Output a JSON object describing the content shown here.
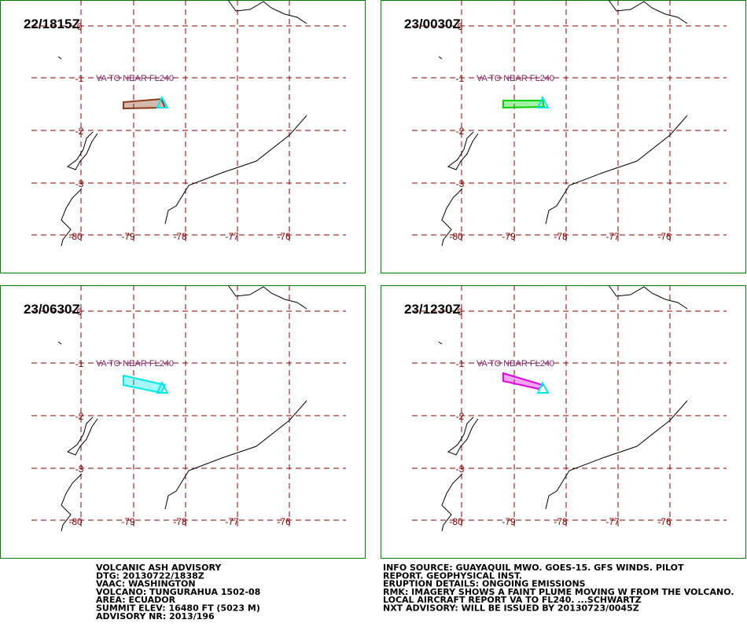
{
  "panels": [
    {
      "time": "22/1815Z",
      "annotation": "VA TO NEAR FL240",
      "color": "#8b3a1a"
    },
    {
      "time": "23/0030Z",
      "annotation": "VA TO NEAR FL240",
      "color": "#00d000"
    },
    {
      "time": "23/0630Z",
      "annotation": "VA TO NEAR FL240",
      "color": "#00e8e8"
    },
    {
      "time": "23/1230Z",
      "annotation": "VA TO NEAR FL240",
      "color": "#e000e0"
    }
  ],
  "lat_labels": [
    "0",
    "-1",
    "-2",
    "-3"
  ],
  "lon_labels": [
    "-80",
    "-79",
    "-78",
    "-77",
    "-76"
  ],
  "advisory_left": [
    "VOLCANIC ASH ADVISORY",
    "DTG: 20130722/1838Z",
    "VAAC: WASHINGTON",
    "VOLCANO: TUNGURAHUA 1502-08",
    "AREA: ECUADOR",
    "SUMMIT ELEV: 16480 FT (5023 M)",
    "ADVISORY NR: 2013/196"
  ],
  "advisory_right": [
    "INFO SOURCE: GUAYAQUIL MWO. GOES-15. GFS WINDS. PILOT",
    "REPORT. GEOPHYSICAL INST.",
    "ERUPTION DETAILS: ONGOING EMISSIONS",
    "RMK: IMAGERY SHOWS A FAINT PLUME MOVING W FROM THE VOLCANO.",
    "LOCAL AIRCRAFT REPORT VA TO FL240. ...SCHWARTZ",
    "NXT ADVISORY: WILL BE ISSUED BY 20130723/0045Z"
  ]
}
